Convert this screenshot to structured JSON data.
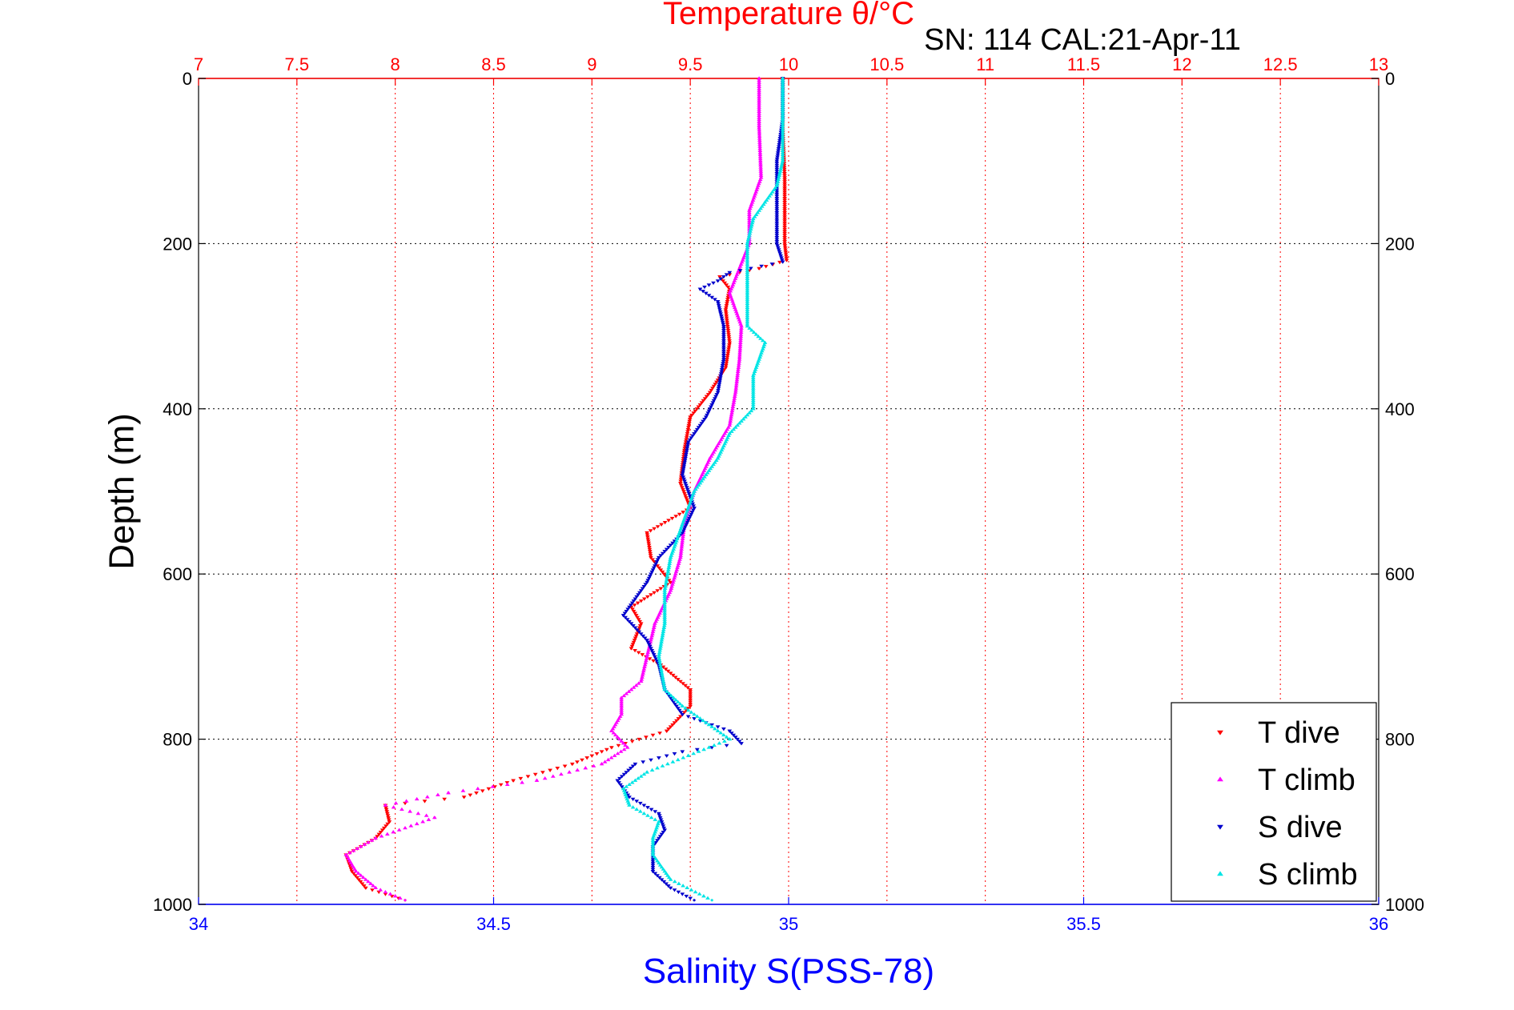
{
  "colors": {
    "temperature_axis": "#ff0000",
    "salinity_axis": "#0000ff",
    "depth_axis": "#000000",
    "t_dive": "#ff0000",
    "t_climb": "#ff00ff",
    "s_dive": "#0000cc",
    "s_climb": "#00e5e5"
  },
  "chart_data": {
    "type": "scatter",
    "title": "SN: 114  CAL:21-Apr-11",
    "top_axis": {
      "label": "Temperature θ/°C",
      "range": [
        7,
        13
      ],
      "ticks": [
        "7",
        "7.5",
        "8",
        "8.5",
        "9",
        "9.5",
        "10",
        "10.5",
        "11",
        "11.5",
        "12",
        "12.5",
        "13"
      ]
    },
    "bottom_axis": {
      "label": "Salinity S(PSS-78)",
      "range": [
        34,
        36
      ],
      "ticks": [
        "34",
        "34.5",
        "35",
        "35.5",
        "36"
      ]
    },
    "y_axis": {
      "label": "Depth (m)",
      "range": [
        0,
        1000
      ],
      "reversed": true,
      "ticks": [
        "0",
        "200",
        "400",
        "600",
        "800",
        "1000"
      ]
    },
    "grid": true,
    "legend_position": "bottom-right",
    "series": [
      {
        "name": "T dive",
        "axis": "temperature",
        "marker": "triangle-down",
        "points": [
          [
            9.97,
            0
          ],
          [
            9.97,
            60
          ],
          [
            9.98,
            120
          ],
          [
            9.98,
            200
          ],
          [
            9.99,
            220
          ],
          [
            9.85,
            230
          ],
          [
            9.65,
            240
          ],
          [
            9.7,
            255
          ],
          [
            9.68,
            280
          ],
          [
            9.7,
            320
          ],
          [
            9.68,
            350
          ],
          [
            9.6,
            380
          ],
          [
            9.5,
            410
          ],
          [
            9.47,
            450
          ],
          [
            9.45,
            490
          ],
          [
            9.5,
            520
          ],
          [
            9.28,
            550
          ],
          [
            9.3,
            580
          ],
          [
            9.4,
            610
          ],
          [
            9.2,
            640
          ],
          [
            9.25,
            660
          ],
          [
            9.2,
            690
          ],
          [
            9.35,
            710
          ],
          [
            9.5,
            740
          ],
          [
            9.5,
            760
          ],
          [
            9.38,
            790
          ],
          [
            9.1,
            810
          ],
          [
            8.9,
            830
          ],
          [
            8.6,
            850
          ],
          [
            8.35,
            870
          ],
          [
            7.95,
            880
          ],
          [
            7.97,
            900
          ],
          [
            7.9,
            920
          ],
          [
            7.75,
            940
          ],
          [
            7.78,
            960
          ],
          [
            7.85,
            980
          ],
          [
            8.05,
            995
          ]
        ]
      },
      {
        "name": "T climb",
        "axis": "temperature",
        "marker": "triangle-up",
        "points": [
          [
            9.85,
            0
          ],
          [
            9.85,
            60
          ],
          [
            9.86,
            120
          ],
          [
            9.8,
            160
          ],
          [
            9.8,
            200
          ],
          [
            9.75,
            230
          ],
          [
            9.7,
            260
          ],
          [
            9.76,
            300
          ],
          [
            9.75,
            340
          ],
          [
            9.73,
            380
          ],
          [
            9.7,
            420
          ],
          [
            9.6,
            460
          ],
          [
            9.52,
            500
          ],
          [
            9.47,
            540
          ],
          [
            9.45,
            580
          ],
          [
            9.4,
            620
          ],
          [
            9.32,
            660
          ],
          [
            9.28,
            700
          ],
          [
            9.25,
            730
          ],
          [
            9.15,
            750
          ],
          [
            9.15,
            770
          ],
          [
            9.1,
            790
          ],
          [
            9.18,
            810
          ],
          [
            9.05,
            830
          ],
          [
            8.72,
            850
          ],
          [
            8.27,
            865
          ],
          [
            7.95,
            880
          ],
          [
            8.2,
            895
          ],
          [
            7.9,
            920
          ],
          [
            7.75,
            940
          ],
          [
            7.8,
            960
          ],
          [
            7.9,
            980
          ],
          [
            8.05,
            995
          ]
        ]
      },
      {
        "name": "S dive",
        "axis": "salinity",
        "marker": "triangle-down",
        "points": [
          [
            34.99,
            0
          ],
          [
            34.99,
            50
          ],
          [
            34.98,
            100
          ],
          [
            34.98,
            150
          ],
          [
            34.98,
            200
          ],
          [
            34.99,
            222
          ],
          [
            34.9,
            235
          ],
          [
            34.88,
            245
          ],
          [
            34.85,
            255
          ],
          [
            34.88,
            270
          ],
          [
            34.89,
            300
          ],
          [
            34.89,
            340
          ],
          [
            34.88,
            380
          ],
          [
            34.86,
            410
          ],
          [
            34.83,
            440
          ],
          [
            34.82,
            480
          ],
          [
            34.84,
            520
          ],
          [
            34.82,
            550
          ],
          [
            34.78,
            580
          ],
          [
            34.76,
            610
          ],
          [
            34.74,
            630
          ],
          [
            34.72,
            650
          ],
          [
            34.76,
            680
          ],
          [
            34.78,
            710
          ],
          [
            34.79,
            740
          ],
          [
            34.82,
            770
          ],
          [
            34.9,
            790
          ],
          [
            34.92,
            805
          ],
          [
            34.82,
            815
          ],
          [
            34.74,
            830
          ],
          [
            34.71,
            850
          ],
          [
            34.73,
            870
          ],
          [
            34.78,
            890
          ],
          [
            34.79,
            910
          ],
          [
            34.77,
            930
          ],
          [
            34.77,
            960
          ],
          [
            34.8,
            980
          ],
          [
            34.84,
            995
          ]
        ]
      },
      {
        "name": "S climb",
        "axis": "salinity",
        "marker": "triangle-up",
        "points": [
          [
            34.99,
            0
          ],
          [
            34.99,
            50
          ],
          [
            34.99,
            100
          ],
          [
            34.98,
            130
          ],
          [
            34.96,
            150
          ],
          [
            34.94,
            170
          ],
          [
            34.93,
            200
          ],
          [
            34.93,
            250
          ],
          [
            34.93,
            300
          ],
          [
            34.96,
            320
          ],
          [
            34.94,
            360
          ],
          [
            34.94,
            400
          ],
          [
            34.9,
            430
          ],
          [
            34.88,
            460
          ],
          [
            34.84,
            500
          ],
          [
            34.82,
            540
          ],
          [
            34.8,
            580
          ],
          [
            34.79,
            620
          ],
          [
            34.79,
            660
          ],
          [
            34.78,
            700
          ],
          [
            34.79,
            740
          ],
          [
            34.82,
            760
          ],
          [
            34.86,
            780
          ],
          [
            34.9,
            800
          ],
          [
            34.83,
            820
          ],
          [
            34.76,
            840
          ],
          [
            34.72,
            860
          ],
          [
            34.73,
            880
          ],
          [
            34.78,
            900
          ],
          [
            34.77,
            920
          ],
          [
            34.77,
            940
          ],
          [
            34.8,
            970
          ],
          [
            34.87,
            995
          ]
        ]
      }
    ]
  }
}
